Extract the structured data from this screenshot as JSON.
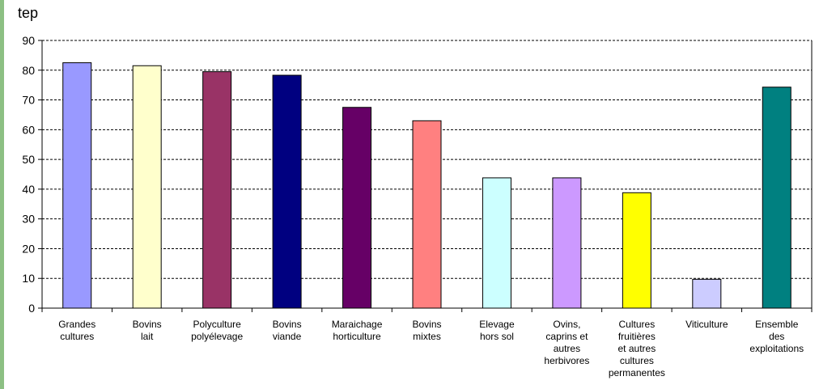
{
  "chart_data": {
    "type": "bar",
    "unit_label": "tep",
    "ylim": [
      0,
      90
    ],
    "yticks": [
      0,
      10,
      20,
      30,
      40,
      50,
      60,
      70,
      80,
      90
    ],
    "grid": true,
    "categories": [
      [
        "Grandes",
        "cultures"
      ],
      [
        "Bovins",
        "lait"
      ],
      [
        "Polyculture",
        "polyélevage"
      ],
      [
        "Bovins",
        "viande"
      ],
      [
        "Maraichage",
        "horticulture"
      ],
      [
        "Bovins",
        "mixtes"
      ],
      [
        "Elevage",
        "hors sol"
      ],
      [
        "Ovins,",
        "caprins et",
        "autres",
        "herbivores"
      ],
      [
        "Cultures",
        "fruitières",
        "et autres",
        "cultures",
        "permanentes"
      ],
      [
        "Viticulture"
      ],
      [
        "Ensemble",
        "des",
        "exploitations"
      ]
    ],
    "values": [
      82.5,
      81.5,
      79.5,
      78.3,
      67.5,
      63,
      43.8,
      43.8,
      38.8,
      9.7,
      74.3
    ],
    "colors": [
      "#9999ff",
      "#ffffcc",
      "#993366",
      "#000080",
      "#660066",
      "#ff8080",
      "#ccffff",
      "#cc99ff",
      "#ffff00",
      "#ccccff",
      "#008080"
    ]
  },
  "colors": {
    "accent_strip": "#8cc083"
  }
}
